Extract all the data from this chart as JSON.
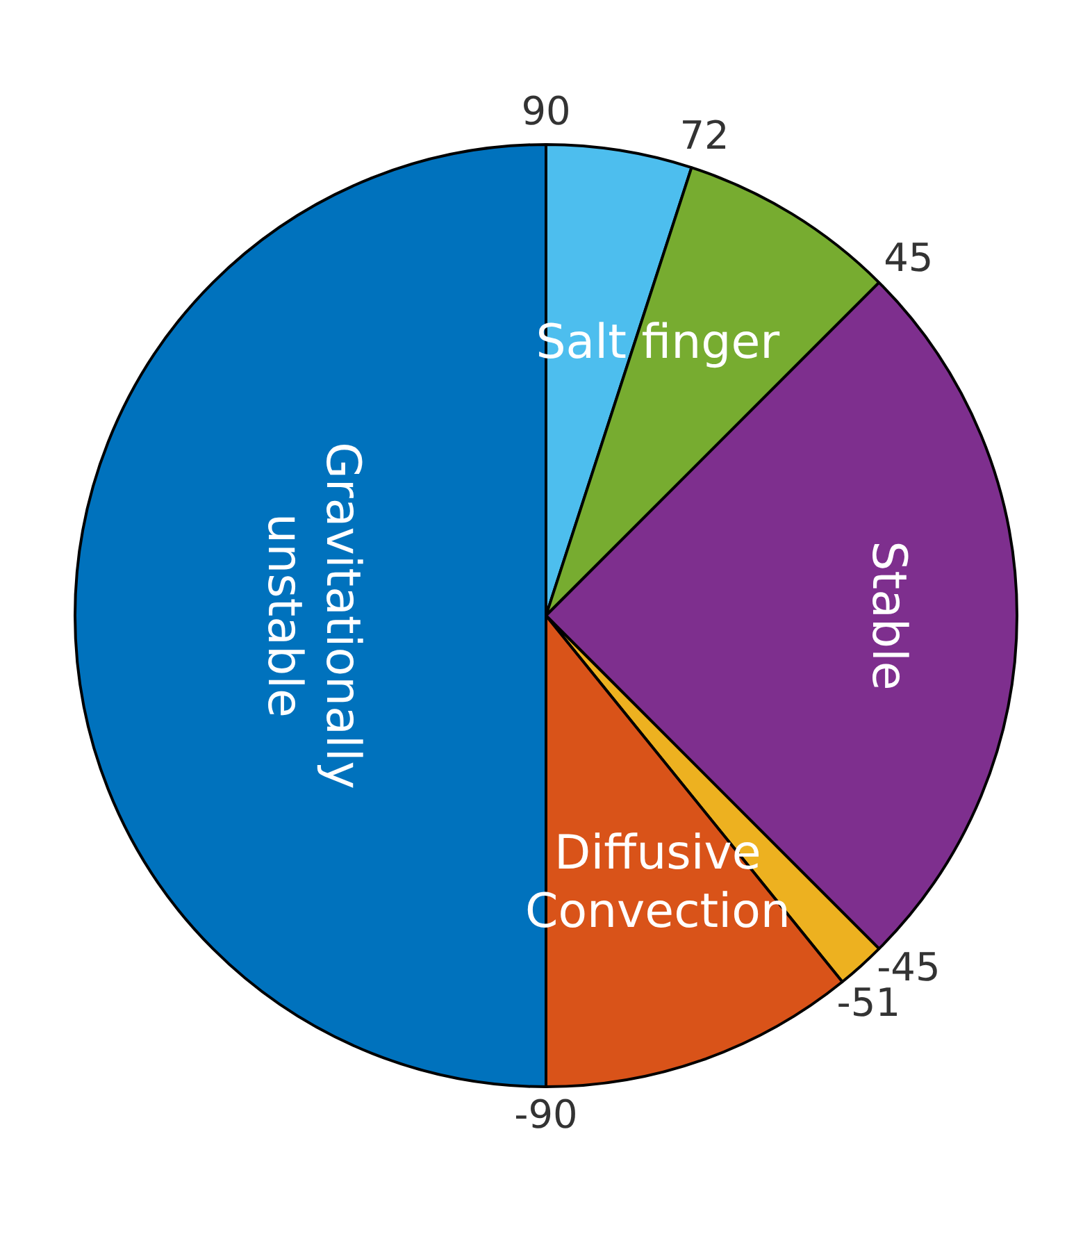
{
  "chart_data": {
    "type": "pie",
    "categories": [
      null,
      "Salt finger",
      "Stable",
      null,
      "Diffusive Convection",
      "Gravitationally unstable"
    ],
    "values": [
      5,
      7.5,
      25,
      1.67,
      10.83,
      50
    ],
    "colors": [
      "#4dbeee",
      "#77ac30",
      "#7e2f8e",
      "#edb120",
      "#d95319",
      "#0072bd"
    ],
    "annotations": [
      "90",
      "72",
      "45",
      "-45",
      "-51",
      "-90"
    ],
    "legend": false
  }
}
